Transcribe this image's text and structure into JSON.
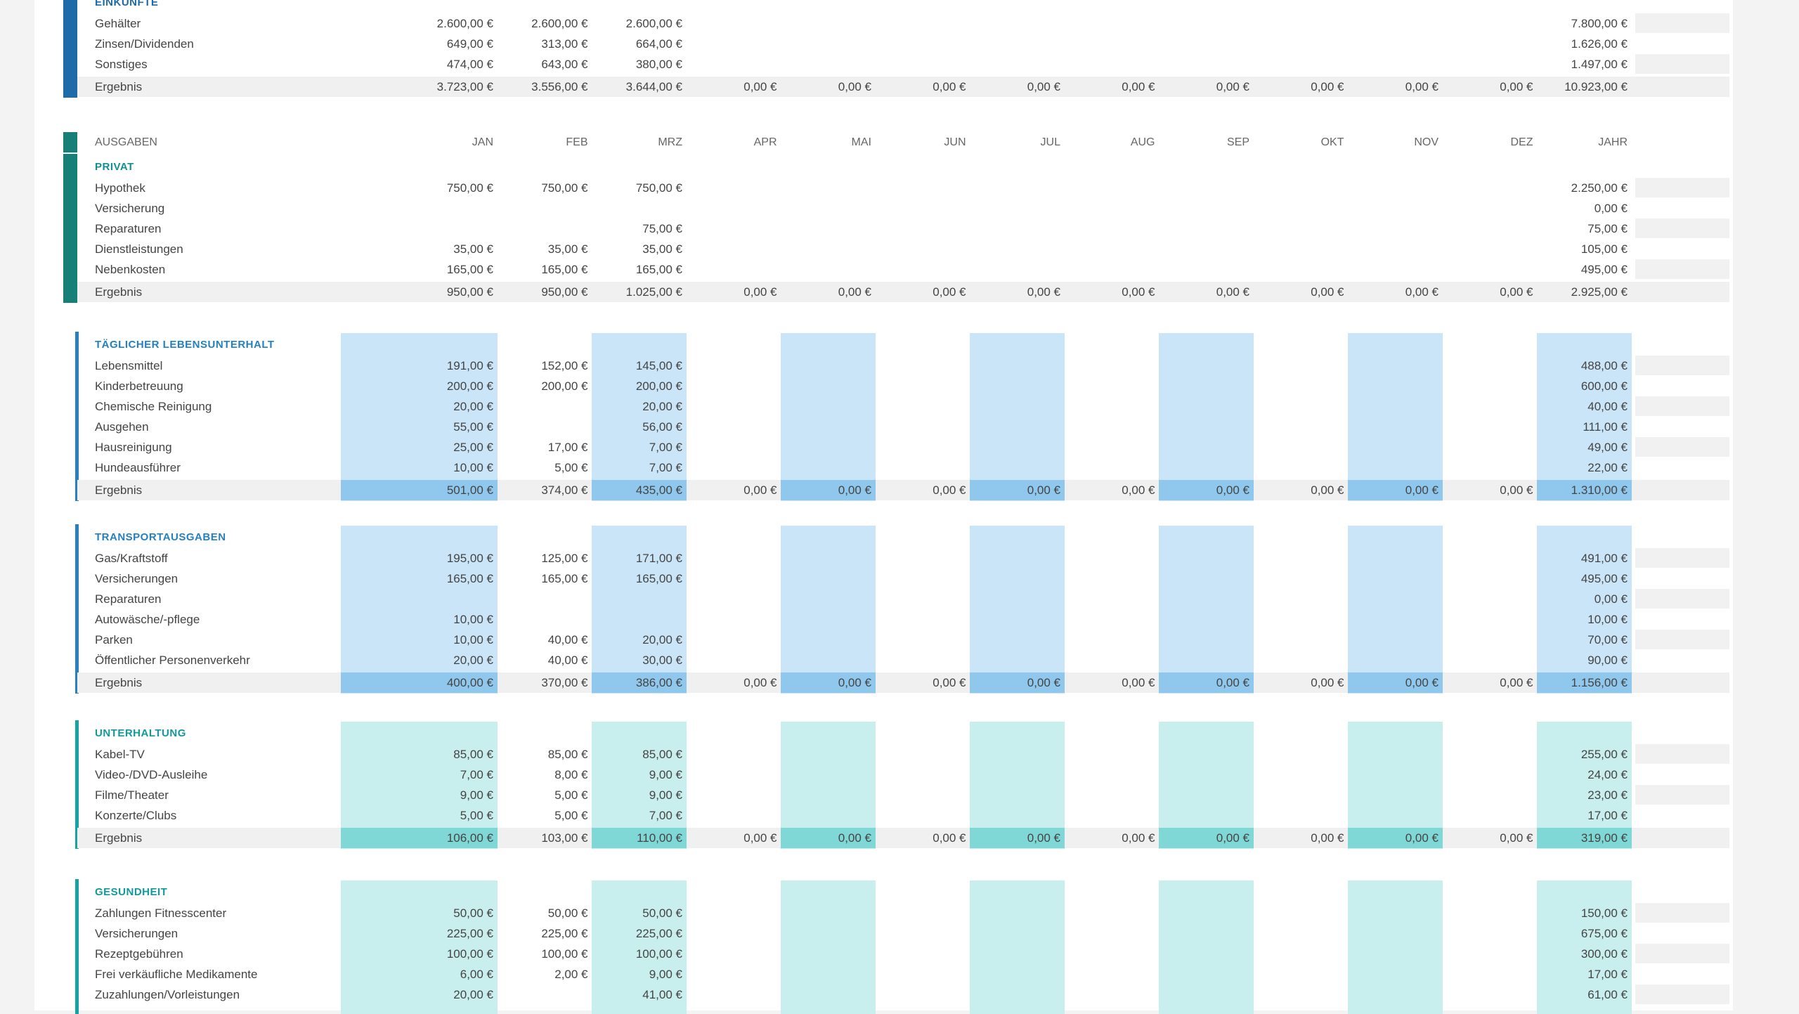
{
  "header": [
    "AUSGABEN",
    "JAN",
    "FEB",
    "MRZ",
    "APR",
    "MAI",
    "JUN",
    "JUL",
    "AUG",
    "SEP",
    "OKT",
    "NOV",
    "DEZ",
    "JAHR"
  ],
  "sections": [
    {
      "title": "EINKÜNFTE",
      "rows": [
        {
          "label": "Gehälter",
          "cells": [
            "2.600,00 €",
            "2.600,00 €",
            "2.600,00 €",
            null,
            null,
            null,
            null,
            null,
            null,
            null,
            null,
            null,
            "7.800,00 €"
          ]
        },
        {
          "label": "Zinsen/Dividenden",
          "cells": [
            "649,00 €",
            "313,00 €",
            "664,00 €",
            null,
            null,
            null,
            null,
            null,
            null,
            null,
            null,
            null,
            "1.626,00 €"
          ]
        },
        {
          "label": "Sonstiges",
          "cells": [
            "474,00 €",
            "643,00 €",
            "380,00 €",
            null,
            null,
            null,
            null,
            null,
            null,
            null,
            null,
            null,
            "1.497,00 €"
          ]
        }
      ],
      "total": {
        "label": "Ergebnis",
        "cells": [
          "3.723,00 €",
          "3.556,00 €",
          "3.644,00 €",
          "0,00 €",
          "0,00 €",
          "0,00 €",
          "0,00 €",
          "0,00 €",
          "0,00 €",
          "0,00 €",
          "0,00 €",
          "0,00 €",
          "10.923,00 €"
        ]
      }
    },
    {
      "title": "PRIVAT",
      "rows": [
        {
          "label": "Hypothek",
          "cells": [
            "750,00 €",
            "750,00 €",
            "750,00 €",
            null,
            null,
            null,
            null,
            null,
            null,
            null,
            null,
            null,
            "2.250,00 €"
          ]
        },
        {
          "label": "Versicherung",
          "cells": [
            null,
            null,
            null,
            null,
            null,
            null,
            null,
            null,
            null,
            null,
            null,
            null,
            "0,00 €"
          ]
        },
        {
          "label": "Reparaturen",
          "cells": [
            null,
            null,
            "75,00 €",
            null,
            null,
            null,
            null,
            null,
            null,
            null,
            null,
            null,
            "75,00 €"
          ]
        },
        {
          "label": "Dienstleistungen",
          "cells": [
            "35,00 €",
            "35,00 €",
            "35,00 €",
            null,
            null,
            null,
            null,
            null,
            null,
            null,
            null,
            null,
            "105,00 €"
          ]
        },
        {
          "label": "Nebenkosten",
          "cells": [
            "165,00 €",
            "165,00 €",
            "165,00 €",
            null,
            null,
            null,
            null,
            null,
            null,
            null,
            null,
            null,
            "495,00 €"
          ]
        }
      ],
      "total": {
        "label": "Ergebnis",
        "cells": [
          "950,00 €",
          "950,00 €",
          "1.025,00 €",
          "0,00 €",
          "0,00 €",
          "0,00 €",
          "0,00 €",
          "0,00 €",
          "0,00 €",
          "0,00 €",
          "0,00 €",
          "0,00 €",
          "2.925,00 €"
        ]
      }
    },
    {
      "title": "TÄGLICHER LEBENSUNTERHALT",
      "rows": [
        {
          "label": "Lebensmittel",
          "cells": [
            "191,00 €",
            "152,00 €",
            "145,00 €",
            null,
            null,
            null,
            null,
            null,
            null,
            null,
            null,
            null,
            "488,00 €"
          ]
        },
        {
          "label": "Kinderbetreuung",
          "cells": [
            "200,00 €",
            "200,00 €",
            "200,00 €",
            null,
            null,
            null,
            null,
            null,
            null,
            null,
            null,
            null,
            "600,00 €"
          ]
        },
        {
          "label": "Chemische Reinigung",
          "cells": [
            "20,00 €",
            null,
            "20,00 €",
            null,
            null,
            null,
            null,
            null,
            null,
            null,
            null,
            null,
            "40,00 €"
          ]
        },
        {
          "label": "Ausgehen",
          "cells": [
            "55,00 €",
            null,
            "56,00 €",
            null,
            null,
            null,
            null,
            null,
            null,
            null,
            null,
            null,
            "111,00 €"
          ]
        },
        {
          "label": "Hausreinigung",
          "cells": [
            "25,00 €",
            "17,00 €",
            "7,00 €",
            null,
            null,
            null,
            null,
            null,
            null,
            null,
            null,
            null,
            "49,00 €"
          ]
        },
        {
          "label": "Hundeausführer",
          "cells": [
            "10,00 €",
            "5,00 €",
            "7,00 €",
            null,
            null,
            null,
            null,
            null,
            null,
            null,
            null,
            null,
            "22,00 €"
          ]
        }
      ],
      "total": {
        "label": "Ergebnis",
        "cells": [
          "501,00 €",
          "374,00 €",
          "435,00 €",
          "0,00 €",
          "0,00 €",
          "0,00 €",
          "0,00 €",
          "0,00 €",
          "0,00 €",
          "0,00 €",
          "0,00 €",
          "0,00 €",
          "1.310,00 €"
        ]
      }
    },
    {
      "title": "TRANSPORTAUSGABEN",
      "rows": [
        {
          "label": "Gas/Kraftstoff",
          "cells": [
            "195,00 €",
            "125,00 €",
            "171,00 €",
            null,
            null,
            null,
            null,
            null,
            null,
            null,
            null,
            null,
            "491,00 €"
          ]
        },
        {
          "label": "Versicherungen",
          "cells": [
            "165,00 €",
            "165,00 €",
            "165,00 €",
            null,
            null,
            null,
            null,
            null,
            null,
            null,
            null,
            null,
            "495,00 €"
          ]
        },
        {
          "label": "Reparaturen",
          "cells": [
            null,
            null,
            null,
            null,
            null,
            null,
            null,
            null,
            null,
            null,
            null,
            null,
            "0,00 €"
          ]
        },
        {
          "label": "Autowäsche/-pflege",
          "cells": [
            "10,00 €",
            null,
            null,
            null,
            null,
            null,
            null,
            null,
            null,
            null,
            null,
            null,
            "10,00 €"
          ]
        },
        {
          "label": "Parken",
          "cells": [
            "10,00 €",
            "40,00 €",
            "20,00 €",
            null,
            null,
            null,
            null,
            null,
            null,
            null,
            null,
            null,
            "70,00 €"
          ]
        },
        {
          "label": "Öffentlicher Personenverkehr",
          "cells": [
            "20,00 €",
            "40,00 €",
            "30,00 €",
            null,
            null,
            null,
            null,
            null,
            null,
            null,
            null,
            null,
            "90,00 €"
          ]
        }
      ],
      "total": {
        "label": "Ergebnis",
        "cells": [
          "400,00 €",
          "370,00 €",
          "386,00 €",
          "0,00 €",
          "0,00 €",
          "0,00 €",
          "0,00 €",
          "0,00 €",
          "0,00 €",
          "0,00 €",
          "0,00 €",
          "0,00 €",
          "1.156,00 €"
        ]
      }
    },
    {
      "title": "UNTERHALTUNG",
      "rows": [
        {
          "label": "Kabel-TV",
          "cells": [
            "85,00 €",
            "85,00 €",
            "85,00 €",
            null,
            null,
            null,
            null,
            null,
            null,
            null,
            null,
            null,
            "255,00 €"
          ]
        },
        {
          "label": "Video-/DVD-Ausleihe",
          "cells": [
            "7,00 €",
            "8,00 €",
            "9,00 €",
            null,
            null,
            null,
            null,
            null,
            null,
            null,
            null,
            null,
            "24,00 €"
          ]
        },
        {
          "label": "Filme/Theater",
          "cells": [
            "9,00 €",
            "5,00 €",
            "9,00 €",
            null,
            null,
            null,
            null,
            null,
            null,
            null,
            null,
            null,
            "23,00 €"
          ]
        },
        {
          "label": "Konzerte/Clubs",
          "cells": [
            "5,00 €",
            "5,00 €",
            "7,00 €",
            null,
            null,
            null,
            null,
            null,
            null,
            null,
            null,
            null,
            "17,00 €"
          ]
        }
      ],
      "total": {
        "label": "Ergebnis",
        "cells": [
          "106,00 €",
          "103,00 €",
          "110,00 €",
          "0,00 €",
          "0,00 €",
          "0,00 €",
          "0,00 €",
          "0,00 €",
          "0,00 €",
          "0,00 €",
          "0,00 €",
          "0,00 €",
          "319,00 €"
        ]
      }
    },
    {
      "title": "GESUNDHEIT",
      "rows": [
        {
          "label": "Zahlungen Fitnesscenter",
          "cells": [
            "50,00 €",
            "50,00 €",
            "50,00 €",
            null,
            null,
            null,
            null,
            null,
            null,
            null,
            null,
            null,
            "150,00 €"
          ]
        },
        {
          "label": "Versicherungen",
          "cells": [
            "225,00 €",
            "225,00 €",
            "225,00 €",
            null,
            null,
            null,
            null,
            null,
            null,
            null,
            null,
            null,
            "675,00 €"
          ]
        },
        {
          "label": "Rezeptgebühren",
          "cells": [
            "100,00 €",
            "100,00 €",
            "100,00 €",
            null,
            null,
            null,
            null,
            null,
            null,
            null,
            null,
            null,
            "300,00 €"
          ]
        },
        {
          "label": "Frei verkäufliche Medikamente",
          "cells": [
            "6,00 €",
            "2,00 €",
            "9,00 €",
            null,
            null,
            null,
            null,
            null,
            null,
            null,
            null,
            null,
            "17,00 €"
          ]
        },
        {
          "label": "Zuzahlungen/Vorleistungen",
          "cells": [
            "20,00 €",
            null,
            "41,00 €",
            null,
            null,
            null,
            null,
            null,
            null,
            null,
            null,
            null,
            "61,00 €"
          ]
        }
      ]
    }
  ]
}
